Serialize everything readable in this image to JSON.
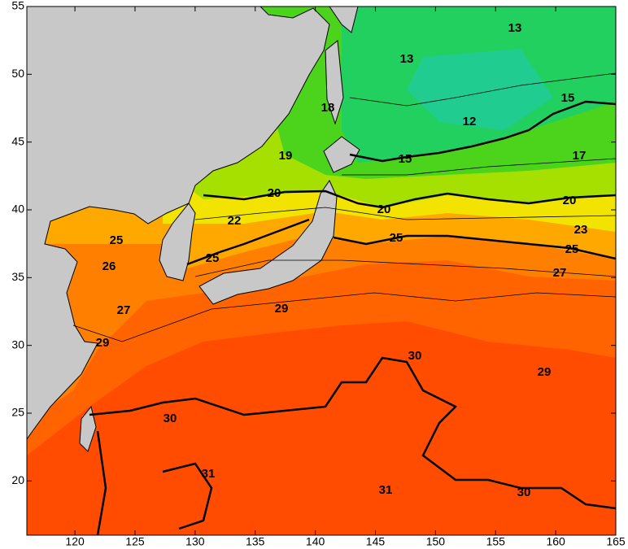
{
  "chart_data": {
    "type": "map",
    "xlim": [
      116,
      165
    ],
    "ylim": [
      16,
      55
    ],
    "xticks": [
      120,
      125,
      130,
      135,
      140,
      145,
      150,
      155,
      160,
      165
    ],
    "yticks": [
      20,
      25,
      30,
      35,
      40,
      45,
      50,
      55
    ],
    "contour_labels": [
      13,
      13,
      15,
      12,
      18,
      19,
      15,
      17,
      20,
      20,
      20,
      22,
      23,
      25,
      25,
      25,
      25,
      26,
      27,
      27,
      29,
      29,
      30,
      29,
      30,
      31,
      31,
      30
    ]
  }
}
